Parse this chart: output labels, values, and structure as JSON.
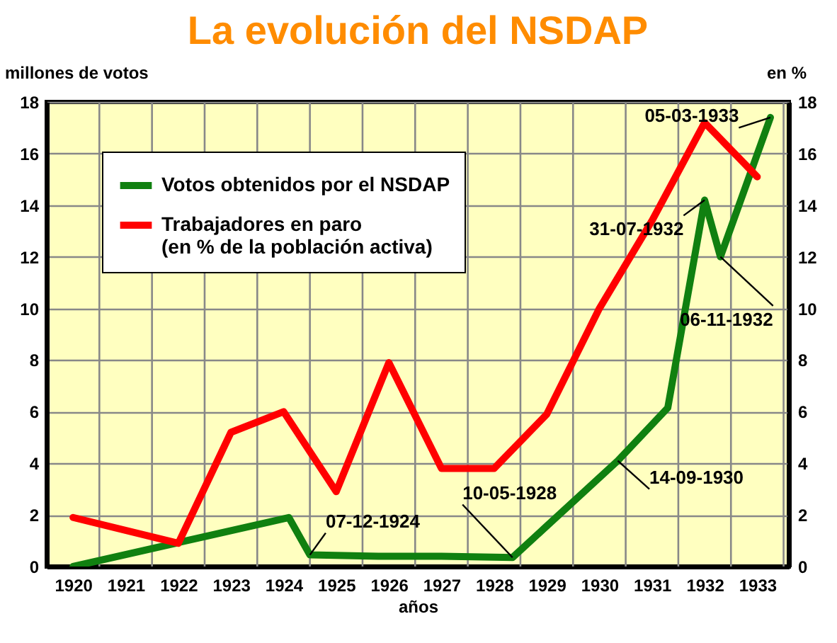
{
  "chart_data": {
    "type": "line",
    "title": "La evolución del NSDAP",
    "xlabel": "años",
    "ylabel": "millones de votos",
    "y2label": "en %",
    "xlim": [
      1919.5,
      1933.6
    ],
    "xticks": [
      1920,
      1921,
      1922,
      1923,
      1924,
      1925,
      1926,
      1927,
      1928,
      1929,
      1930,
      1931,
      1932,
      1933,
      {
        "value": 1920.5,
        "label": null
      },
      {
        "value": 1921.5,
        "label": null
      },
      {
        "value": 1922.5,
        "label": null
      },
      {
        "value": 1923.5,
        "label": null
      },
      {
        "value": 1924.5,
        "label": null
      },
      {
        "value": 1925.5,
        "label": null
      },
      {
        "value": 1926.5,
        "label": null
      },
      {
        "value": 1927.5,
        "label": null
      },
      {
        "value": 1928.5,
        "label": null
      },
      {
        "value": 1929.5,
        "label": null
      },
      {
        "value": 1930.5,
        "label": null
      },
      {
        "value": 1931.5,
        "label": null
      },
      {
        "value": 1932.5,
        "label": null
      },
      {
        "value": 1933.5,
        "label": null
      }
    ],
    "ylim": [
      0,
      18
    ],
    "yticks": [
      0,
      2,
      4,
      6,
      8,
      10,
      12,
      14,
      16,
      18
    ],
    "y2lim": [
      0,
      18
    ],
    "y2ticks": [
      0,
      2,
      4,
      6,
      8,
      10,
      12,
      14,
      16,
      18
    ],
    "series": [
      {
        "name": "Votos obtenidos por el NSDAP",
        "color": "#108010",
        "x": [
          1920,
          1924.1,
          1924.5,
          1925.8,
          1927,
          1928.35,
          1930.35,
          1931.3,
          1932,
          1932.3,
          1933.25
        ],
        "values": [
          0,
          1.9,
          0.45,
          0.4,
          0.4,
          0.35,
          4.1,
          6.15,
          14.2,
          12.0,
          17.4
        ]
      },
      {
        "name": "Trabajadores en paro (en % de la población activa)",
        "color": "#ff0000",
        "axis": "y2",
        "x": [
          1920,
          1922,
          1923,
          1924,
          1925,
          1926,
          1927,
          1928,
          1929,
          1930,
          1931,
          1932,
          1933
        ],
        "values": [
          1.9,
          0.9,
          5.2,
          6,
          2.9,
          7.9,
          3.8,
          3.8,
          5.9,
          10.0,
          13.4,
          17.2,
          15.1
        ]
      }
    ],
    "annotations": [
      {
        "text": "07-12-1924",
        "x": 1924.5,
        "y": 0.45
      },
      {
        "text": "10-05-1928",
        "x": 1928.35,
        "y": 0.35
      },
      {
        "text": "14-09-1930",
        "x": 1930.35,
        "y": 4.1
      },
      {
        "text": "31-07-1932",
        "x": 1932,
        "y": 14.2
      },
      {
        "text": "06-11-1932",
        "x": 1932.3,
        "y": 12.0
      },
      {
        "text": "05-03-1933",
        "x": 1933.25,
        "y": 17.4
      }
    ],
    "grid": true,
    "legend": "top left"
  }
}
